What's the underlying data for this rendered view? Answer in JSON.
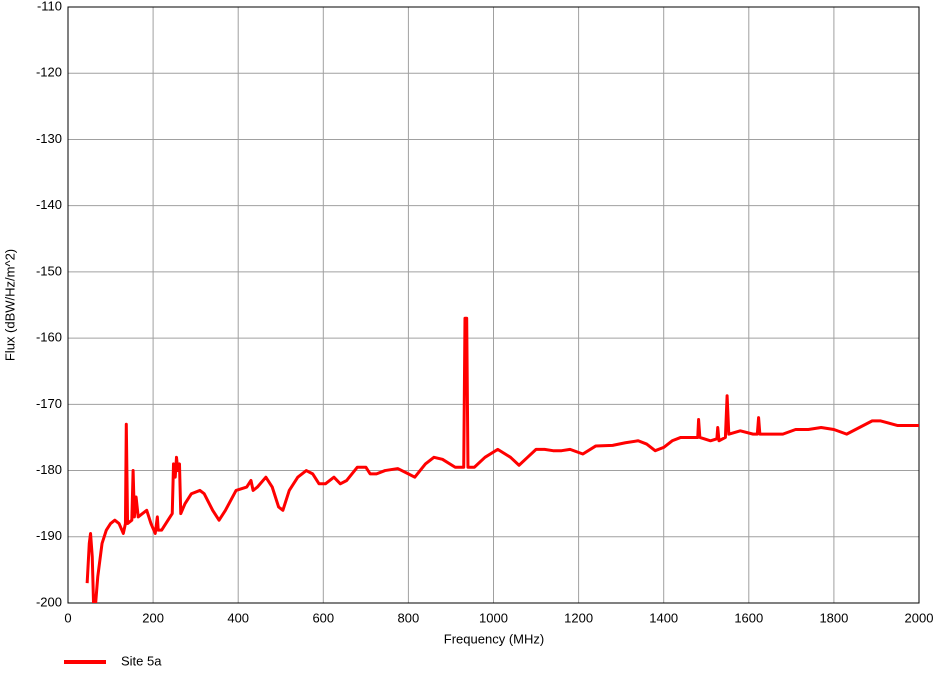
{
  "chart_data": {
    "type": "line",
    "x_label": "Frequency (MHz)",
    "y_label": "Flux (dBW/Hz/m^2)",
    "x": [
      45,
      50,
      53,
      57,
      60,
      65,
      70,
      80,
      90,
      100,
      110,
      120,
      130,
      135,
      137,
      140,
      150,
      153,
      156,
      160,
      165,
      175,
      185,
      195,
      205,
      210,
      212,
      220,
      235,
      245,
      248,
      252,
      255,
      258,
      262,
      265,
      275,
      290,
      310,
      320,
      340,
      355,
      370,
      395,
      420,
      430,
      435,
      445,
      465,
      480,
      495,
      505,
      520,
      540,
      560,
      575,
      590,
      605,
      625,
      640,
      655,
      680,
      700,
      710,
      725,
      745,
      775,
      800,
      815,
      840,
      860,
      880,
      910,
      930,
      933,
      937,
      940,
      955,
      980,
      1010,
      1040,
      1060,
      1080,
      1100,
      1120,
      1140,
      1160,
      1180,
      1210,
      1240,
      1280,
      1310,
      1340,
      1360,
      1380,
      1400,
      1420,
      1440,
      1460,
      1480,
      1482,
      1485,
      1510,
      1525,
      1527,
      1530,
      1545,
      1549,
      1553,
      1580,
      1610,
      1620,
      1623,
      1626,
      1650,
      1680,
      1710,
      1740,
      1770,
      1800,
      1830,
      1860,
      1890,
      1910,
      1950,
      2000
    ],
    "series": [
      {
        "name": "Site 5a",
        "color": "#ff0000",
        "values": [
          -197,
          -191,
          -189.5,
          -193,
          -200,
          -200,
          -196,
          -191,
          -189,
          -188,
          -187.5,
          -188,
          -189.5,
          -188,
          -173,
          -188,
          -187.5,
          -180,
          -187,
          -184,
          -187,
          -186.5,
          -186,
          -188,
          -189.5,
          -187,
          -189,
          -189,
          -187.5,
          -186.5,
          -179,
          -181,
          -178,
          -180,
          -179,
          -186.5,
          -185,
          -183.5,
          -183,
          -183.5,
          -186,
          -187.5,
          -186,
          -183,
          -182.5,
          -181.5,
          -183,
          -182.5,
          -181,
          -182.5,
          -185.5,
          -186,
          -183,
          -181,
          -180,
          -180.5,
          -182,
          -182,
          -181,
          -182,
          -181.5,
          -179.5,
          -179.5,
          -180.5,
          -180.5,
          -180,
          -179.7,
          -180.5,
          -181,
          -179,
          -178,
          -178.3,
          -179.5,
          -179.5,
          -157,
          -157,
          -179.5,
          -179.5,
          -178,
          -176.8,
          -178,
          -179.2,
          -178,
          -176.8,
          -176.8,
          -177,
          -177,
          -176.8,
          -177.5,
          -176.3,
          -176.2,
          -175.8,
          -175.5,
          -176,
          -177,
          -176.5,
          -175.5,
          -175,
          -175,
          -175,
          -172.3,
          -175,
          -175.5,
          -175.2,
          -173.5,
          -175.5,
          -175,
          -168.7,
          -174.5,
          -174,
          -174.5,
          -174.5,
          -172,
          -174.5,
          -174.5,
          -174.5,
          -173.8,
          -173.8,
          -173.5,
          -173.8,
          -174.5,
          -173.5,
          -172.5,
          -172.5,
          -173.2,
          -173.2
        ]
      }
    ],
    "xlim": [
      0,
      2000
    ],
    "xticks": [
      0,
      200,
      400,
      600,
      800,
      1000,
      1200,
      1400,
      1600,
      1800,
      2000
    ],
    "ylim": [
      -200,
      -110
    ],
    "yticks": [
      -200,
      -190,
      -180,
      -170,
      -160,
      -150,
      -140,
      -130,
      -120,
      -110
    ],
    "grid": true,
    "legend": "bottom-left"
  }
}
